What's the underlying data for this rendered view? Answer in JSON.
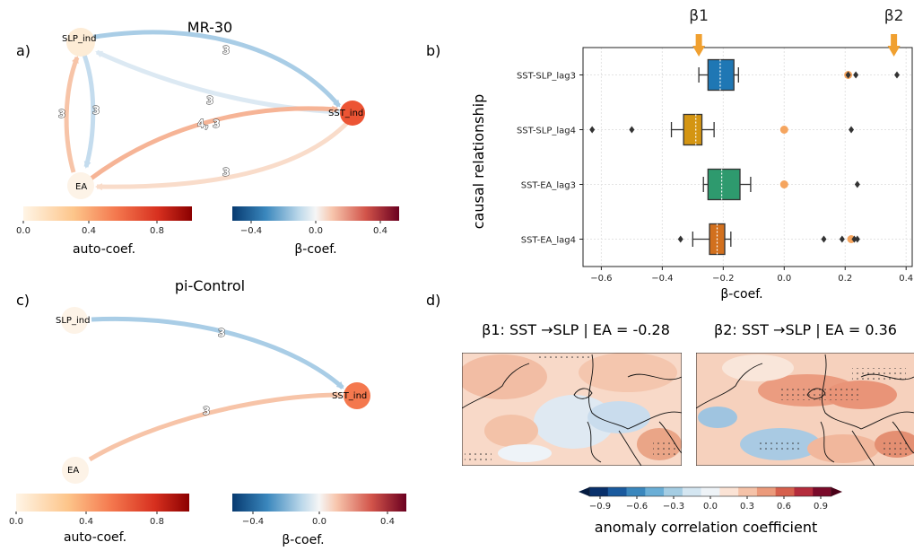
{
  "panels": {
    "a": {
      "label": "a)",
      "title": "MR-30",
      "nodes": [
        {
          "name": "SLP_ind",
          "color": "#fdecd6"
        },
        {
          "name": "SST_ind",
          "color": "#ec5434"
        },
        {
          "name": "EA",
          "color": "#fdf3e7"
        }
      ],
      "edges": [
        {
          "from": "SLP_ind",
          "to": "SST_ind",
          "label": "3",
          "color": "#a9cde6"
        },
        {
          "from": "SST_ind",
          "to": "SLP_ind",
          "label": "3",
          "color": "#dce9f3"
        },
        {
          "from": "EA",
          "to": "SLP_ind",
          "label": "3",
          "color": "#f7c4a8"
        },
        {
          "from": "SLP_ind",
          "to": "EA",
          "label": "3",
          "color": "#c4dcee"
        },
        {
          "from": "EA",
          "to": "SST_ind",
          "label": "4, 3",
          "color": "#f6b496"
        },
        {
          "from": "SST_ind",
          "to": "EA",
          "label": "3",
          "color": "#f9dcca"
        }
      ],
      "auto_colorbar": {
        "label": "auto-coef.",
        "ticks": [
          "0.0",
          "0.4",
          "0.8"
        ]
      },
      "beta_colorbar": {
        "label": "β-coef.",
        "ticks": [
          "−0.4",
          "0.0",
          "0.4"
        ]
      }
    },
    "c": {
      "label": "c)",
      "title": "pi-Control",
      "nodes": [
        {
          "name": "SLP_ind",
          "color": "#fdf3e7"
        },
        {
          "name": "SST_ind",
          "color": "#f4784e"
        },
        {
          "name": "EA",
          "color": "#fdf3e7"
        }
      ],
      "edges": [
        {
          "from": "SLP_ind",
          "to": "SST_ind",
          "label": "3",
          "color": "#a9cde6"
        },
        {
          "from": "EA",
          "to": "SST_ind",
          "label": "3",
          "color": "#f7c4a8"
        }
      ],
      "auto_colorbar": {
        "label": "auto-coef.",
        "ticks": [
          "0.0",
          "0.4",
          "0.8"
        ]
      },
      "beta_colorbar": {
        "label": "β-coef.",
        "ticks": [
          "−0.4",
          "0.0",
          "0.4"
        ]
      }
    },
    "b": {
      "label": "b)"
    },
    "d": {
      "label": "d)",
      "map1_title": "β1: SST →SLP | EA = -0.28",
      "map2_title": "β2: SST →SLP | EA = 0.36",
      "colorbar_label": "anomaly correlation coefficient",
      "colorbar_ticks": [
        "−0.9",
        "−0.6",
        "−0.3",
        "0.0",
        "0.3",
        "0.6",
        "0.9"
      ]
    }
  },
  "chart_data": {
    "type": "box",
    "xlabel": "β-coef.",
    "ylabel": "causal relationship",
    "xlim": [
      -0.66,
      0.42
    ],
    "xticks": [
      -0.6,
      -0.4,
      -0.2,
      0.0,
      0.2,
      0.4
    ],
    "xtick_labels": [
      "−0.6",
      "−0.4",
      "−0.2",
      "0.0",
      "0.2",
      "0.4"
    ],
    "grid": true,
    "markers": [
      {
        "label": "β1",
        "x": -0.28,
        "color": "#f0a030"
      },
      {
        "label": "β2",
        "x": 0.36,
        "color": "#f0a030"
      }
    ],
    "categories": [
      "SST-SLP_lag3",
      "SST-SLP_lag4",
      "SST-EA_lag3",
      "SST-EA_lag4"
    ],
    "boxes": [
      {
        "name": "SST-SLP_lag3",
        "color": "#1f77b4",
        "whisker_low": -0.28,
        "q1": -0.25,
        "median": -0.21,
        "q3": -0.165,
        "whisker_high": -0.15,
        "outliers": [
          0.21,
          0.235,
          0.37
        ],
        "highlight": [
          0.21
        ]
      },
      {
        "name": "SST-SLP_lag4",
        "color": "#d49512",
        "whisker_low": -0.37,
        "q1": -0.33,
        "median": -0.29,
        "q3": -0.27,
        "whisker_high": -0.23,
        "outliers": [
          -0.63,
          -0.5,
          0.22
        ],
        "highlight": [
          0.0
        ]
      },
      {
        "name": "SST-EA_lag3",
        "color": "#2e9a6e",
        "whisker_low": -0.265,
        "q1": -0.25,
        "median": -0.205,
        "q3": -0.145,
        "whisker_high": -0.11,
        "outliers": [
          0.24
        ],
        "highlight": [
          0.0
        ]
      },
      {
        "name": "SST-EA_lag4",
        "color": "#d2701e",
        "whisker_low": -0.3,
        "q1": -0.245,
        "median": -0.22,
        "q3": -0.195,
        "whisker_high": -0.175,
        "outliers": [
          -0.34,
          0.13,
          0.19,
          0.23,
          0.24
        ],
        "highlight": [
          0.22
        ]
      }
    ]
  }
}
